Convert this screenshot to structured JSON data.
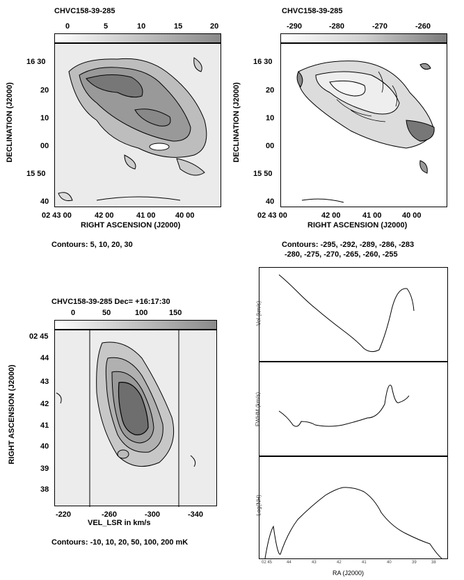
{
  "panels": {
    "top_left": {
      "title": "CHVC158-39-285",
      "colorbar_ticks": [
        "0",
        "5",
        "10",
        "15",
        "20"
      ],
      "y_ticks": [
        "16 30",
        "20",
        "10",
        "00",
        "15 50",
        "40"
      ],
      "x_ticks": [
        "02 43 00",
        "42 00",
        "41 00",
        "40 00"
      ],
      "xlabel": "RIGHT ASCENSION (J2000)",
      "ylabel": "DECLINATION (J2000)",
      "contours": "Contours: 5, 10, 20, 30"
    },
    "top_right": {
      "title": "CHVC158-39-285",
      "colorbar_ticks": [
        "-290",
        "-280",
        "-270",
        "-260"
      ],
      "y_ticks": [
        "16 30",
        "20",
        "10",
        "00",
        "15 50",
        "40"
      ],
      "x_ticks": [
        "02 43 00",
        "42 00",
        "41 00",
        "40 00"
      ],
      "xlabel": "RIGHT ASCENSION (J2000)",
      "ylabel": "DECLINATION (J2000)",
      "contours_line1": "Contours: -295, -292, -289, -286, -283",
      "contours_line2": "-280, -275, -270, -265, -260, -255"
    },
    "bottom_left": {
      "title": "CHVC158-39-285  Dec= +16:17:30",
      "colorbar_ticks": [
        "0",
        "50",
        "100",
        "150"
      ],
      "y_ticks": [
        "02 45",
        "44",
        "43",
        "42",
        "41",
        "40",
        "39",
        "38"
      ],
      "x_ticks": [
        "-220",
        "-260",
        "-300",
        "-340"
      ],
      "xlabel": "VEL_LSR in km/s",
      "ylabel": "RIGHT ASCENSION (J2000)",
      "contours": "Contours: -10, 10, 20, 50, 100, 200 mK"
    },
    "bottom_right": {
      "ylabel_vel": "Vel (km/s)",
      "ylabel_fwhm": "FWHM (km/s)",
      "ylabel_nh": "Log(NH)",
      "xlabel": "RA (J2000)",
      "x_ticks": [
        "02 45",
        "44",
        "43",
        "42",
        "41",
        "40",
        "39",
        "38"
      ]
    }
  },
  "colors": {
    "dark": "#6e6e6e",
    "mid": "#a8a8a8",
    "light": "#d8d8d8",
    "bg": "#ececec"
  }
}
